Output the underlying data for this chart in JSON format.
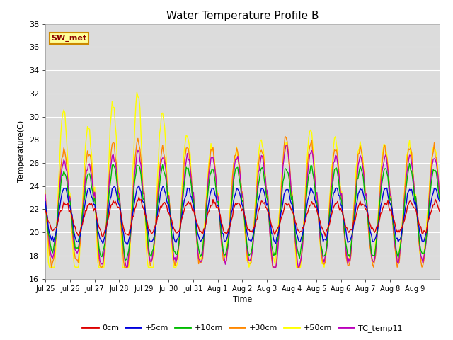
{
  "title": "Water Temperature Profile B",
  "xlabel": "Time",
  "ylabel": "Temperature(C)",
  "ylim": [
    16,
    38
  ],
  "yticks": [
    16,
    18,
    20,
    22,
    24,
    26,
    28,
    30,
    32,
    34,
    36,
    38
  ],
  "xtick_labels": [
    "Jul 25",
    "Jul 26",
    "Jul 27",
    "Jul 28",
    "Jul 29",
    "Jul 30",
    "Jul 31",
    "Aug 1",
    "Aug 2",
    "Aug 3",
    "Aug 4",
    "Aug 5",
    "Aug 6",
    "Aug 7",
    "Aug 8",
    "Aug 9"
  ],
  "colors": {
    "0cm": "#dd0000",
    "+5cm": "#0000dd",
    "+10cm": "#00bb00",
    "+30cm": "#ff8800",
    "+50cm": "#ffff00",
    "TC_temp11": "#bb00bb"
  },
  "legend_labels": [
    "0cm",
    "+5cm",
    "+10cm",
    "+30cm",
    "+50cm",
    "TC_temp11"
  ],
  "annotation_text": "SW_met",
  "annotation_bg": "#ffff99",
  "annotation_border": "#cc8800",
  "plot_bg": "#dcdcdc"
}
